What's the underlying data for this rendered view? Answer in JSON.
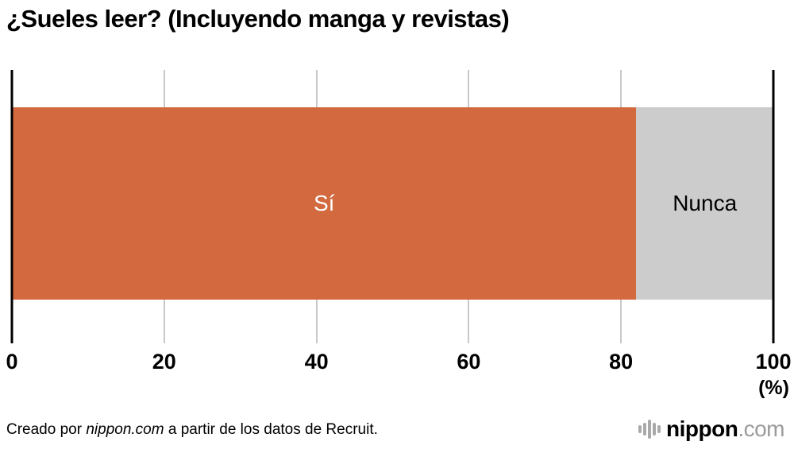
{
  "chart_data": {
    "type": "bar",
    "orientation": "horizontal-stacked",
    "title": "¿Sueles leer? (Incluyendo manga y revistas)",
    "categories": [
      "Sí",
      "Nunca"
    ],
    "values": [
      82,
      18
    ],
    "colors": [
      "#d2693f",
      "#cccccc"
    ],
    "label_colors": [
      "#ffffff",
      "#000000"
    ],
    "x_ticks": [
      0,
      20,
      40,
      60,
      80,
      100
    ],
    "xlim": [
      0,
      100
    ],
    "unit_label": "(%)",
    "grid": true,
    "legend": "none"
  },
  "footer": {
    "credit_prefix": "Creado por ",
    "credit_source": "nippon.com",
    "credit_suffix": " a partir de los datos de Recruit."
  },
  "brand": {
    "logo_icon": "nippon-bars-icon",
    "name": "nippon",
    "suffix": ".com"
  }
}
